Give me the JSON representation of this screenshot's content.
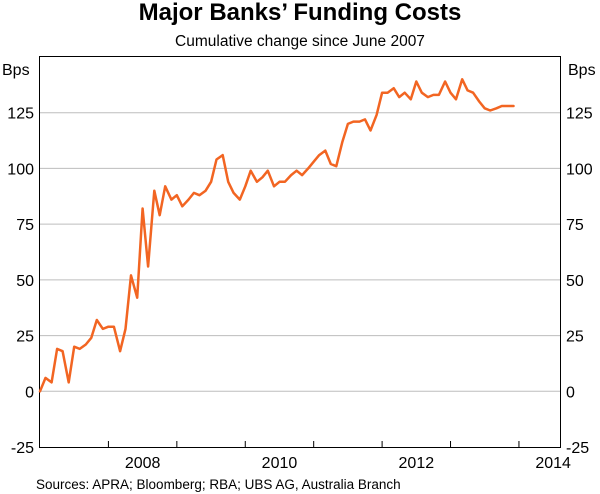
{
  "chart_data": {
    "type": "line",
    "title": "Major Banks’ Funding Costs",
    "subtitle": "Cumulative change since June 2007",
    "ylabel_left": "Bps",
    "ylabel_right": "Bps",
    "ylim": [
      -25,
      150
    ],
    "yticks": [
      -25,
      0,
      25,
      50,
      75,
      100,
      125
    ],
    "xlim": [
      2007.0,
      2014.6
    ],
    "xticks": [
      2008,
      2010,
      2012,
      2014
    ],
    "grid": true,
    "series": [
      {
        "color": "#f26522",
        "x": [
          2007.0,
          2007.08,
          2007.17,
          2007.25,
          2007.33,
          2007.42,
          2007.5,
          2007.58,
          2007.67,
          2007.75,
          2007.83,
          2007.92,
          2008.0,
          2008.08,
          2008.17,
          2008.25,
          2008.33,
          2008.42,
          2008.5,
          2008.58,
          2008.67,
          2008.75,
          2008.83,
          2008.92,
          2009.0,
          2009.08,
          2009.17,
          2009.25,
          2009.33,
          2009.42,
          2009.5,
          2009.58,
          2009.67,
          2009.75,
          2009.83,
          2009.92,
          2010.0,
          2010.08,
          2010.17,
          2010.25,
          2010.33,
          2010.42,
          2010.5,
          2010.58,
          2010.67,
          2010.75,
          2010.83,
          2010.92,
          2011.0,
          2011.08,
          2011.17,
          2011.25,
          2011.33,
          2011.42,
          2011.5,
          2011.58,
          2011.67,
          2011.75,
          2011.83,
          2011.92,
          2012.0,
          2012.08,
          2012.17,
          2012.25,
          2012.33,
          2012.42,
          2012.5,
          2012.58,
          2012.67,
          2012.75,
          2012.83,
          2012.92,
          2013.0,
          2013.08,
          2013.17,
          2013.25,
          2013.33,
          2013.42,
          2013.5,
          2013.58,
          2013.67,
          2013.75,
          2013.83,
          2013.92
        ],
        "values": [
          0,
          6,
          4,
          19,
          18,
          4,
          20,
          19,
          21,
          24,
          32,
          28,
          29,
          29,
          18,
          28,
          52,
          42,
          82,
          56,
          90,
          79,
          92,
          86,
          88,
          83,
          86,
          89,
          88,
          90,
          94,
          104,
          106,
          94,
          89,
          86,
          92,
          99,
          94,
          96,
          99,
          92,
          94,
          94,
          97,
          99,
          97,
          100,
          103,
          106,
          108,
          102,
          101,
          112,
          120,
          121,
          121,
          122,
          117,
          124,
          134,
          134,
          136,
          132,
          134,
          131,
          139,
          134,
          132,
          133,
          133,
          139,
          134,
          131,
          140,
          135,
          134,
          130,
          127,
          126,
          127,
          128,
          128,
          128
        ]
      }
    ]
  },
  "source": "Sources: APRA; Bloomberg; RBA; UBS AG, Australia Branch"
}
